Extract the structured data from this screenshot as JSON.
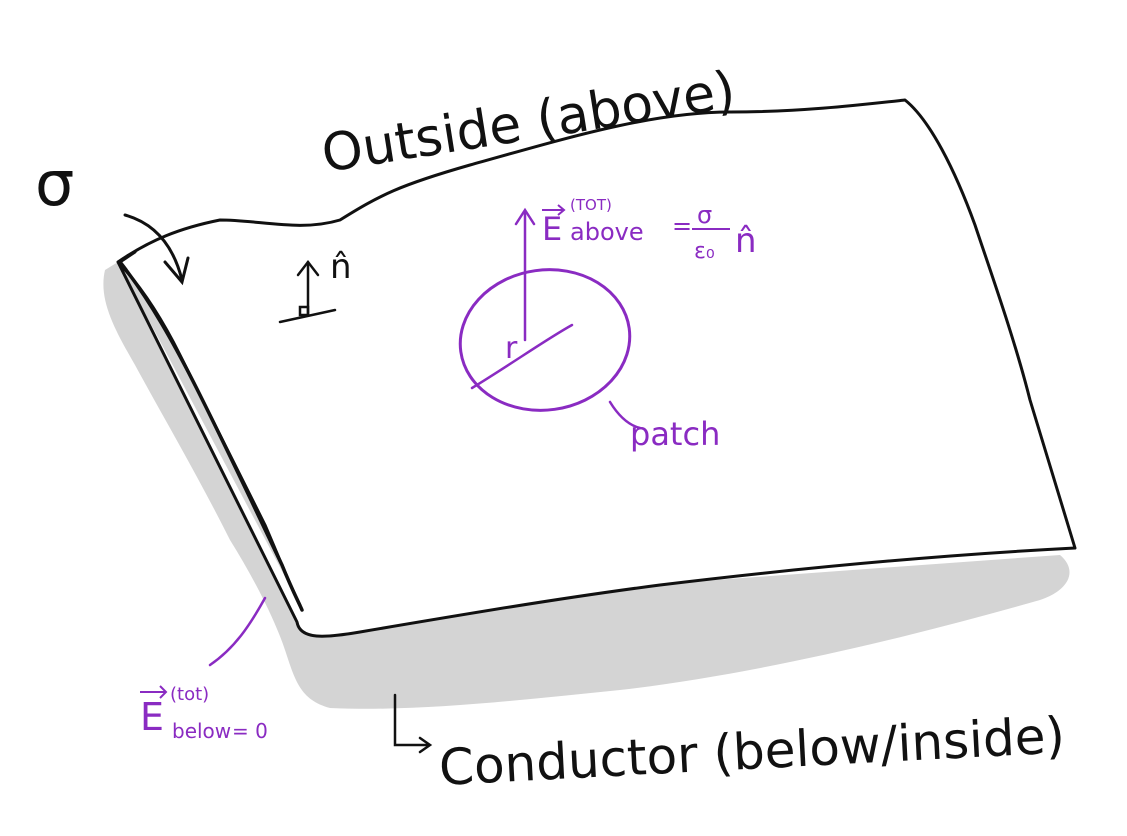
{
  "labels": {
    "outside": "Outside (above)",
    "conductor": "Conductor (below/inside)",
    "sigma": "σ",
    "normal_hat": "n̂",
    "e_above_vec": "E",
    "e_above_sup": "(TOT)",
    "e_above_sub": "above",
    "e_above_eq": "=",
    "e_above_num": "σ",
    "e_above_den": "ε₀",
    "e_above_n": "n̂",
    "radius": "r",
    "patch": "patch",
    "e_below_vec": "E",
    "e_below_sup": "(tot)",
    "e_below_sub": "below",
    "e_below_eq": "= 0"
  },
  "colors": {
    "ink": "#111111",
    "annotation": "#8a2bc2",
    "shadow": "#d4d4d4"
  }
}
